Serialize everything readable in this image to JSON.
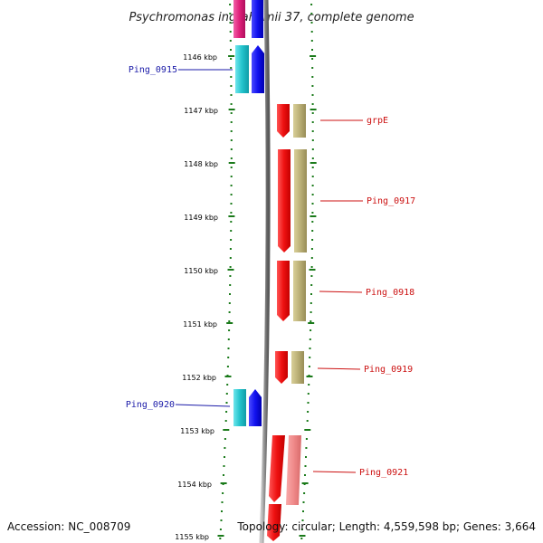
{
  "title": "Psychromonas ingrahamii 37, complete genome",
  "accession": "Accession: NC_008709",
  "topology": "Topology: circular; Length: 4,559,598 bp; Genes: 3,664",
  "colors": {
    "tick_green": "#1a7a1a",
    "backbone": "#7a7a7a",
    "red_gene": "#ee1111",
    "olive_cds": "#bbb077",
    "pink_cds": "#f08a8a",
    "blue_gene": "#1111ee",
    "cyan_cds": "#22c3cc",
    "magenta_gene": "#e0207a",
    "left_label": "#1a1aa8",
    "right_label": "#cc1111"
  },
  "kbp_labels": [
    "1146 kbp",
    "1147 kbp",
    "1148 kbp",
    "1149 kbp",
    "1150 kbp",
    "1151 kbp",
    "1152 kbp",
    "1153 kbp",
    "1154 kbp",
    "1155 kbp"
  ],
  "gene_labels": {
    "left": [
      {
        "name": "Ping_0915"
      },
      {
        "name": "Ping_0920"
      }
    ],
    "right": [
      {
        "name": "grpE"
      },
      {
        "name": "Ping_0917"
      },
      {
        "name": "Ping_0918"
      },
      {
        "name": "Ping_0919"
      },
      {
        "name": "Ping_0921"
      }
    ]
  }
}
